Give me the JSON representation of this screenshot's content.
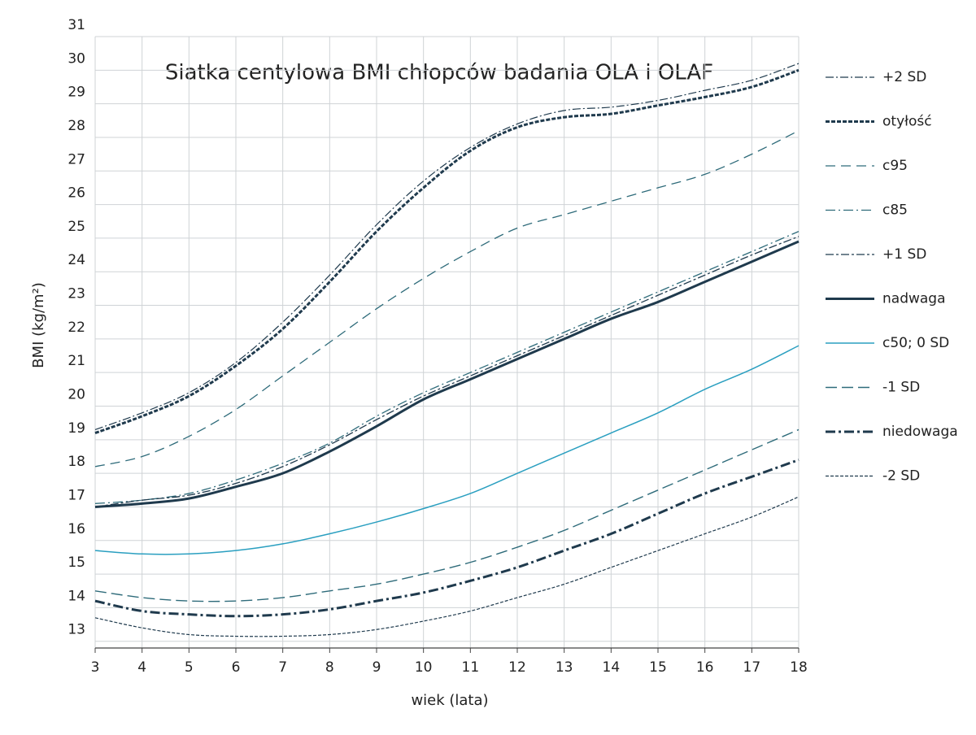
{
  "chart_data": {
    "type": "line",
    "title": "Siatka centylowa BMI chłopców badania OLA i OLAF",
    "x_label": "wiek (lata)",
    "y_label": "BMI (kg/m²)",
    "x": [
      3,
      4,
      5,
      6,
      7,
      8,
      9,
      10,
      11,
      12,
      13,
      14,
      15,
      16,
      17,
      18
    ],
    "xlim": [
      3,
      18
    ],
    "xticks": [
      3,
      4,
      5,
      6,
      7,
      8,
      9,
      10,
      11,
      12,
      13,
      14,
      15,
      16,
      17,
      18
    ],
    "ylim": [
      12.8,
      31
    ],
    "yticks": [
      13,
      14,
      15,
      16,
      17,
      18,
      19,
      20,
      21,
      22,
      23,
      24,
      25,
      26,
      27,
      28,
      29,
      30,
      31
    ],
    "grid": true,
    "legend": "right",
    "series": [
      {
        "name": "+2 SD",
        "color": "#1f3a4d",
        "dash": "10 3 2 3",
        "width": 1.2,
        "values": [
          19.3,
          19.8,
          20.4,
          21.3,
          22.5,
          23.9,
          25.4,
          26.7,
          27.7,
          28.4,
          28.8,
          28.9,
          29.1,
          29.4,
          29.7,
          30.2
        ]
      },
      {
        "name": "otyłość",
        "color": "#1f3a4d",
        "dash": "5 2",
        "width": 3,
        "values": [
          19.2,
          19.7,
          20.3,
          21.2,
          22.3,
          23.7,
          25.2,
          26.5,
          27.6,
          28.3,
          28.6,
          28.7,
          28.95,
          29.2,
          29.5,
          30.0
        ]
      },
      {
        "name": "c95",
        "color": "#2e6b7a",
        "dash": "12 7",
        "width": 1.3,
        "values": [
          18.2,
          18.5,
          19.1,
          19.9,
          20.9,
          21.9,
          22.9,
          23.8,
          24.6,
          25.3,
          25.7,
          26.1,
          26.5,
          26.9,
          27.5,
          28.2
        ]
      },
      {
        "name": "c85",
        "color": "#2e6b7a",
        "dash": "12 4 2 4",
        "width": 1.3,
        "values": [
          17.1,
          17.2,
          17.4,
          17.8,
          18.3,
          18.9,
          19.7,
          20.4,
          21.0,
          21.6,
          22.2,
          22.8,
          23.4,
          24.0,
          24.6,
          25.2
        ]
      },
      {
        "name": "+1 SD",
        "color": "#1f3a4d",
        "dash": "10 3 3 3",
        "width": 1.3,
        "values": [
          17.0,
          17.2,
          17.35,
          17.7,
          18.2,
          18.85,
          19.6,
          20.3,
          20.9,
          21.5,
          22.1,
          22.7,
          23.3,
          23.9,
          24.5,
          25.05
        ]
      },
      {
        "name": "nadwaga",
        "color": "#1f3a4d",
        "dash": "",
        "width": 3,
        "values": [
          17.0,
          17.1,
          17.25,
          17.6,
          18.0,
          18.65,
          19.4,
          20.2,
          20.8,
          21.4,
          22.0,
          22.6,
          23.1,
          23.7,
          24.3,
          24.9
        ]
      },
      {
        "name": "c50; 0 SD",
        "color": "#2a9fc0",
        "dash": "",
        "width": 1.5,
        "values": [
          15.7,
          15.6,
          15.6,
          15.7,
          15.9,
          16.2,
          16.55,
          16.95,
          17.4,
          18.0,
          18.6,
          19.2,
          19.8,
          20.5,
          21.1,
          21.8
        ]
      },
      {
        "name": "-1 SD",
        "color": "#2e6b7a",
        "dash": "14 6",
        "width": 1.4,
        "values": [
          14.5,
          14.3,
          14.2,
          14.2,
          14.3,
          14.5,
          14.7,
          15.0,
          15.35,
          15.8,
          16.3,
          16.9,
          17.5,
          18.1,
          18.7,
          19.3
        ]
      },
      {
        "name": "niedowaga",
        "color": "#1f3a4d",
        "dash": "12 4 3 4",
        "width": 3,
        "values": [
          14.2,
          13.9,
          13.8,
          13.75,
          13.8,
          13.95,
          14.2,
          14.45,
          14.8,
          15.2,
          15.7,
          16.2,
          16.8,
          17.4,
          17.9,
          18.4
        ]
      },
      {
        "name": "-2 SD",
        "color": "#1f3a4d",
        "dash": "4 2",
        "width": 1.2,
        "values": [
          13.7,
          13.4,
          13.2,
          13.15,
          13.15,
          13.2,
          13.35,
          13.6,
          13.9,
          14.3,
          14.7,
          15.2,
          15.7,
          16.2,
          16.7,
          17.3
        ]
      }
    ]
  }
}
